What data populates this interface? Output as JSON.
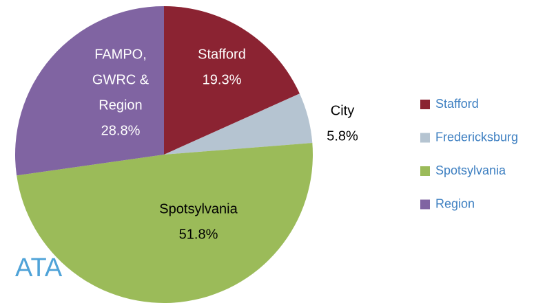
{
  "chart_data": {
    "type": "pie",
    "categories": [
      "Stafford",
      "Fredericksburg",
      "Spotsylvania",
      "Region"
    ],
    "values": [
      19.3,
      5.8,
      51.8,
      28.8
    ],
    "value_labels": [
      "19.3%",
      "5.8%",
      "51.8%",
      "28.8%"
    ],
    "slice_labels": [
      [
        "Stafford"
      ],
      [
        "City"
      ],
      [
        "Spotsylvania"
      ],
      [
        "FAMPO,",
        "GWRC &",
        "Region"
      ]
    ],
    "colors": [
      "#8b2332",
      "#b5c4d1",
      "#9bbb59",
      "#8064a2"
    ],
    "legend": "right",
    "background_text": "ATA"
  }
}
